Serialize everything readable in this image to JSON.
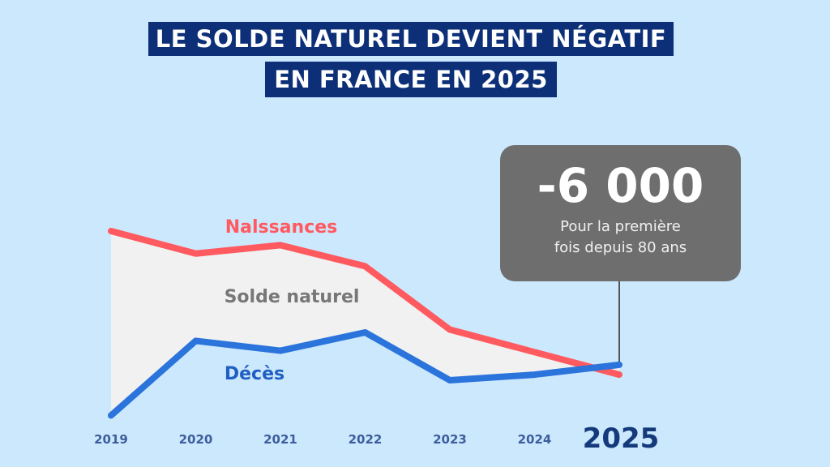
{
  "title": {
    "line1": "LE SOLDE NATUREL DEVIENT NÉGATIF",
    "line2": "EN FRANCE EN 2025"
  },
  "callout": {
    "value": "-6 000",
    "line1": "Pour la première",
    "line2": "fois depuis 80 ans"
  },
  "colors": {
    "background": "#cce8fd",
    "title_bg": "#0d2f78",
    "births": "#ff5a5f",
    "deaths": "#2a74db",
    "area": "#f1f1f1",
    "callout_bg": "#6e6e6e"
  },
  "chart_data": {
    "type": "line",
    "title": "LE SOLDE NATUREL DEVIENT NÉGATIF EN FRANCE EN 2025",
    "categories": [
      "2019",
      "2020",
      "2021",
      "2022",
      "2023",
      "2024",
      "2025"
    ],
    "series": [
      {
        "name": "Nalssances",
        "values": [
          753,
          737,
          743,
          728,
          683,
          667,
          651
        ]
      },
      {
        "name": "Décès",
        "values": [
          622,
          675,
          668,
          681,
          647,
          651,
          658
        ]
      }
    ],
    "area_label": "Solde naturel",
    "annotation": "-6 000",
    "grid": false,
    "highlight_category": "2025"
  }
}
